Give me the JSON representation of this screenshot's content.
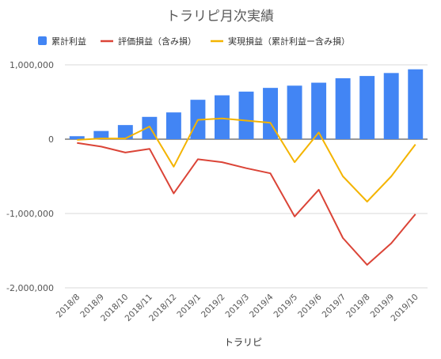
{
  "chart_data": {
    "type": "bar",
    "title": "トラリピ月次実績",
    "xlabel": "トラリピ",
    "ylabel": "",
    "categories": [
      "2018/8",
      "2018/9",
      "2018/10",
      "2018/11",
      "2018/12",
      "2019/1",
      "2019/2",
      "2019/3",
      "2019/4",
      "2019/5",
      "2019/6",
      "2019/7",
      "2019/8",
      "2019/9",
      "2019/10"
    ],
    "ylim": [
      -2000000,
      1000000
    ],
    "yticks": [
      1000000,
      0,
      -1000000,
      -2000000
    ],
    "ytick_labels": [
      "1,000,000",
      "0",
      "-1,000,000",
      "-2,000,000"
    ],
    "grid": true,
    "legend_position": "top",
    "series": [
      {
        "name": "累計利益",
        "kind": "bar",
        "color": "#4285f4",
        "values": [
          40000,
          110000,
          190000,
          300000,
          360000,
          530000,
          590000,
          640000,
          690000,
          720000,
          760000,
          820000,
          850000,
          890000,
          940000
        ]
      },
      {
        "name": "評価損益（含み損）",
        "kind": "line",
        "color": "#db4437",
        "values": [
          -50000,
          -100000,
          -180000,
          -130000,
          -730000,
          -270000,
          -310000,
          -390000,
          -460000,
          -1040000,
          -680000,
          -1330000,
          -1690000,
          -1400000,
          -1010000
        ]
      },
      {
        "name": "実現損益（累計利益ー含み損）",
        "kind": "line",
        "color": "#f4b400",
        "values": [
          -10000,
          10000,
          10000,
          170000,
          -370000,
          260000,
          280000,
          250000,
          220000,
          -310000,
          90000,
          -500000,
          -840000,
          -500000,
          -70000
        ]
      }
    ]
  }
}
